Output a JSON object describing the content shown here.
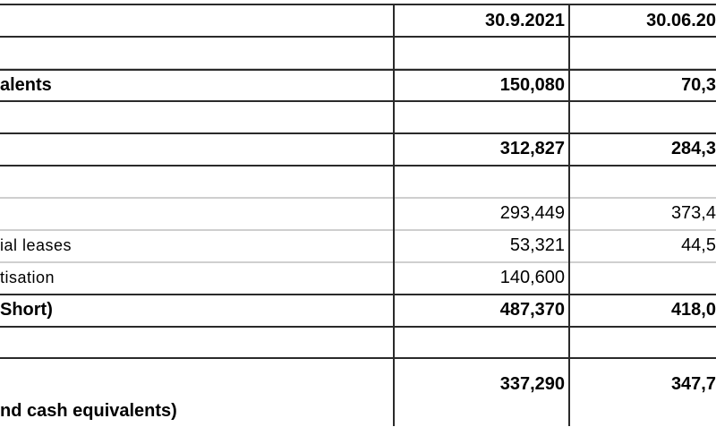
{
  "table": {
    "headers": {
      "col1": "30.9.2021",
      "col2": "30.06.20"
    },
    "rows": [
      {
        "label": "",
        "v1": "",
        "v2": ""
      },
      {
        "label": "alents",
        "v1": "150,080",
        "v2": "70,3"
      },
      {
        "label": "",
        "v1": "",
        "v2": ""
      },
      {
        "label": "",
        "v1": "312,827",
        "v2": "284,3"
      },
      {
        "label": "",
        "v1": "",
        "v2": ""
      },
      {
        "label": "",
        "v1": "293,449",
        "v2": "373,4"
      },
      {
        "label": "ial leases",
        "v1": "53,321",
        "v2": "44,5"
      },
      {
        "label": "tisation",
        "v1": "140,600",
        "v2": ""
      },
      {
        "label": "Short)",
        "v1": "487,370",
        "v2": "418,0"
      },
      {
        "label": "",
        "v1": "",
        "v2": ""
      },
      {
        "label": "nd cash equivalents)",
        "v1": "337,290",
        "v2": "347,7"
      }
    ]
  }
}
